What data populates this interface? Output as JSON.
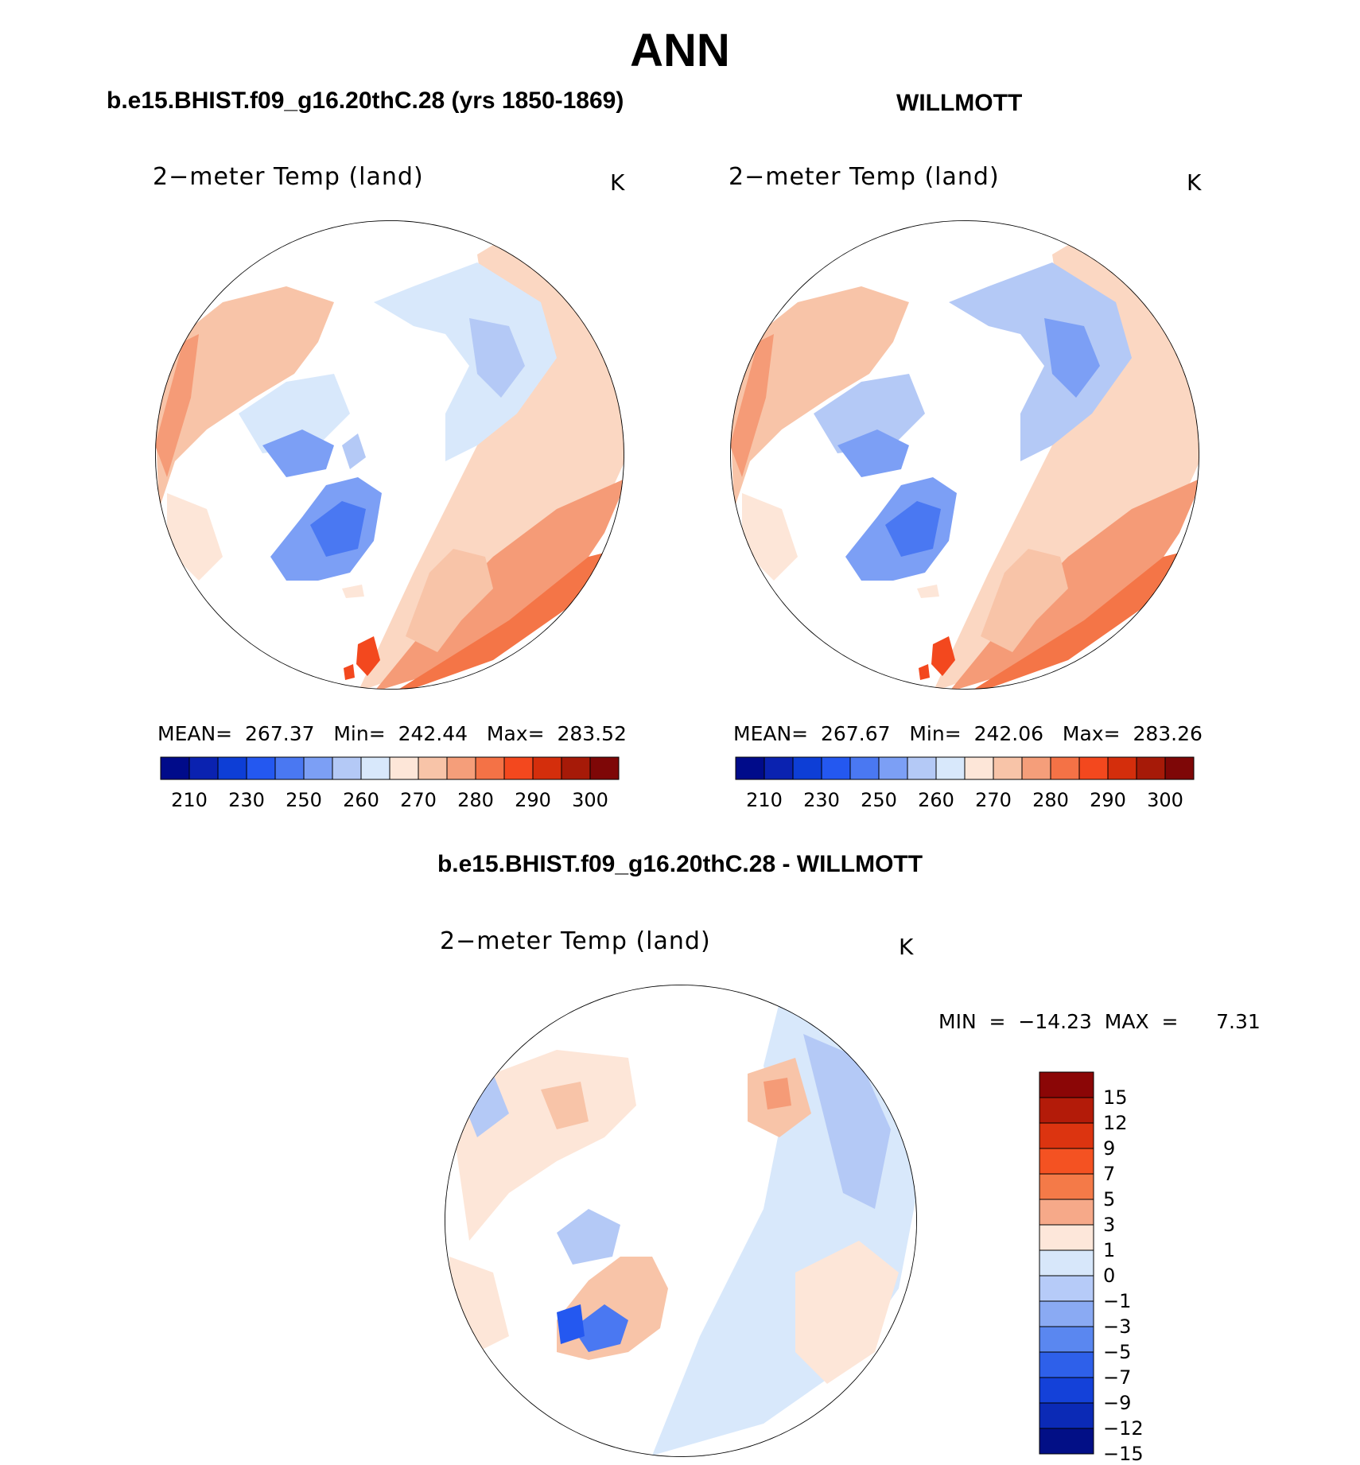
{
  "title": "ANN",
  "panels": [
    {
      "header": "b.e15.BHIST.f09_g16.20thC.28 (yrs 1850-1869)",
      "field": "2−meter Temp (land)",
      "unit": "K",
      "stats": {
        "mean_label": "MEAN=",
        "mean": "267.37",
        "min_label": "Min=",
        "min": "242.44",
        "max_label": "Max=",
        "max": "283.52"
      }
    },
    {
      "header": "WILLMOTT",
      "field": "2−meter Temp (land)",
      "unit": "K",
      "stats": {
        "mean_label": "MEAN=",
        "mean": "267.67",
        "min_label": "Min=",
        "min": "242.06",
        "max_label": "Max=",
        "max": "283.26"
      }
    }
  ],
  "diff_panel": {
    "header": "b.e15.BHIST.f09_g16.20thC.28 - WILLMOTT",
    "field": "2−meter Temp (land)",
    "unit": "K",
    "stats": "MIN  =  −14.23  MAX  =      7.31"
  },
  "colorbar": {
    "colors": [
      "#000b8a",
      "#0a22b0",
      "#0d3ed6",
      "#2458f0",
      "#4a78f2",
      "#7c9ff5",
      "#b4c9f6",
      "#d8e8fb",
      "#fde6d8",
      "#f8c4a8",
      "#f59e7a",
      "#f47246",
      "#f3481e",
      "#d42e0c",
      "#a61a08",
      "#7e0707"
    ],
    "ticks": [
      "210",
      "230",
      "250",
      "260",
      "270",
      "280",
      "290",
      "300"
    ]
  },
  "diff_colorbar": {
    "colors_top_to_bottom": [
      "#8b0606",
      "#b31b09",
      "#dc3410",
      "#f45222",
      "#f47a48",
      "#f6a989",
      "#fde7da",
      "#d7e7fa",
      "#b6cbf8",
      "#8aaaf3",
      "#5a87f0",
      "#2e60ea",
      "#1441d9",
      "#0b2ab6",
      "#020f86"
    ],
    "ticks": [
      "15",
      "12",
      "9",
      "7",
      "5",
      "3",
      "1",
      "0",
      "−1",
      "−3",
      "−5",
      "−7",
      "−9",
      "−12",
      "−15"
    ]
  }
}
